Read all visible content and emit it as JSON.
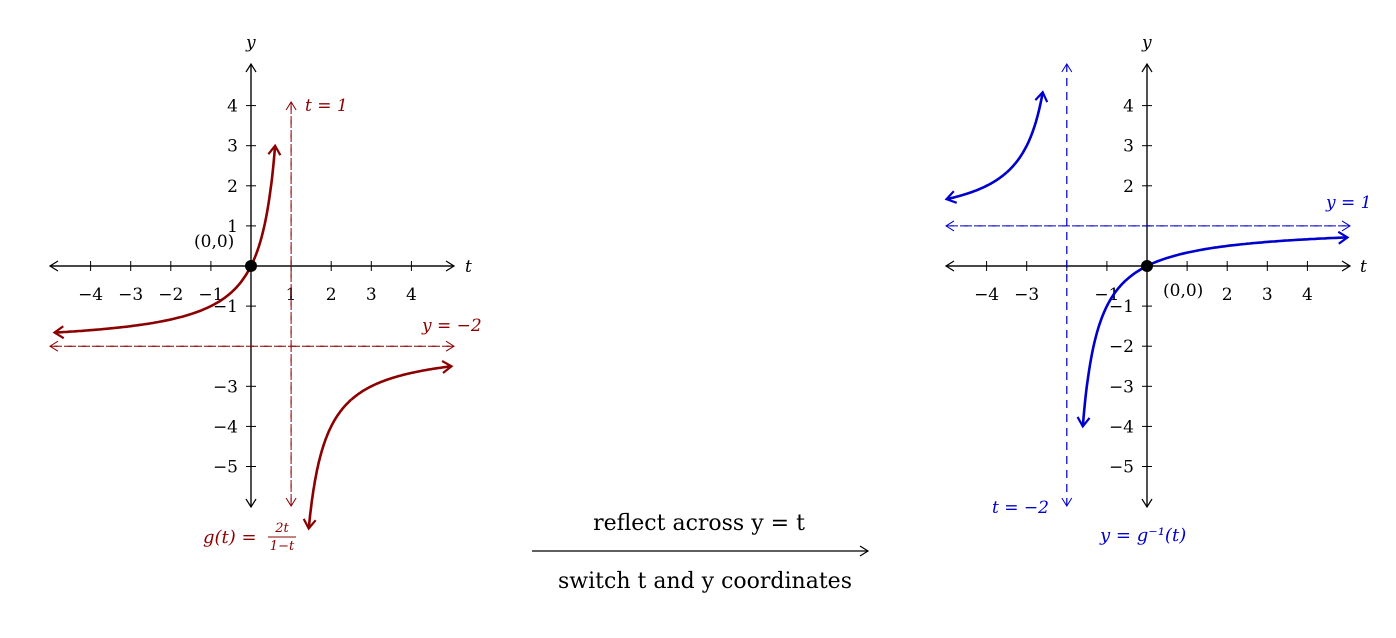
{
  "left_graph": {
    "x_axis_label": "t",
    "y_axis_label": "y",
    "x_ticks": [
      "−4",
      "−3",
      "−2",
      "−1",
      "1",
      "2",
      "3",
      "4"
    ],
    "y_ticks": [
      "4",
      "3",
      "2",
      "1",
      "−1",
      "−3",
      "−4",
      "−5"
    ],
    "point_label": "(0,0)",
    "vertical_asymptote_label": "t = 1",
    "horizontal_asymptote_label": "y = −2",
    "function_label_lhs": "g(t) =",
    "function_label_num": "2t",
    "function_label_den": "1−t",
    "color": "#8b0000"
  },
  "right_graph": {
    "x_axis_label": "t",
    "y_axis_label": "y",
    "x_ticks": [
      "−4",
      "−3",
      "−1",
      "2",
      "3",
      "4"
    ],
    "y_ticks": [
      "4",
      "3",
      "2",
      "−1",
      "−2",
      "−3",
      "−4",
      "−5"
    ],
    "point_label": "(0,0)",
    "vertical_asymptote_label": "t = −2",
    "horizontal_asymptote_label": "y = 1",
    "function_label": "y = g⁻¹(t)",
    "color": "#0000cc"
  },
  "transition": {
    "top_text": "reflect across y = t",
    "bottom_text": "switch t and y coordinates"
  }
}
